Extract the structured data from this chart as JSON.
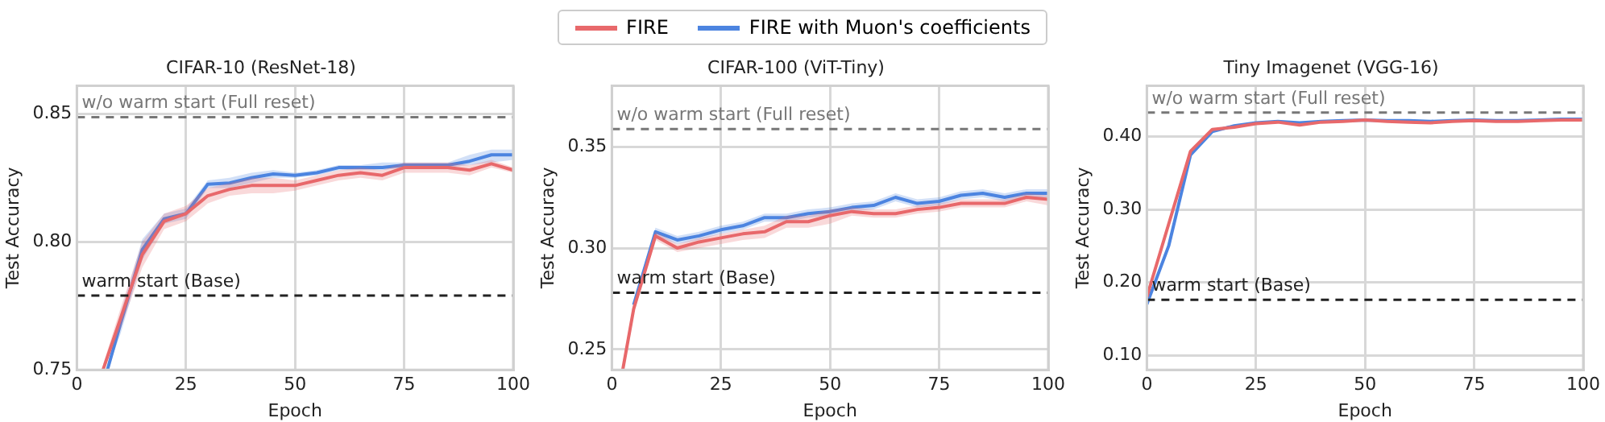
{
  "chart_data": [
    {
      "type": "line",
      "title": "CIFAR-10 (ResNet-18)",
      "xlabel": "Epoch",
      "ylabel": "Test Accuracy",
      "legend": "top",
      "grid": true,
      "xlim": [
        0,
        100
      ],
      "xticks": [
        0,
        25,
        50,
        75,
        100
      ],
      "ylim": [
        0.75,
        0.861
      ],
      "yticks": [
        {
          "value": 0.75,
          "label": "0.75"
        },
        {
          "value": 0.8,
          "label": "0.80"
        },
        {
          "value": 0.85,
          "label": "0.85"
        }
      ],
      "ref_lines": [
        {
          "axis": "y",
          "value": 0.8487,
          "label": "w/o warm start (Full reset)",
          "color": "#777777",
          "line_style": "dashed"
        },
        {
          "axis": "y",
          "value": 0.779,
          "label": "warm start (Base)",
          "color": "#222222",
          "line_style": "dashed"
        }
      ],
      "series": [
        {
          "name": "FIRE",
          "color": "#e8696b",
          "x": [
            6,
            10,
            15,
            20,
            25,
            30,
            35,
            40,
            45,
            50,
            55,
            60,
            65,
            70,
            75,
            80,
            85,
            90,
            95,
            100
          ],
          "values": [
            0.75,
            0.77,
            0.795,
            0.808,
            0.811,
            0.818,
            0.8205,
            0.822,
            0.822,
            0.822,
            0.824,
            0.826,
            0.827,
            0.826,
            0.829,
            0.829,
            0.829,
            0.828,
            0.8305,
            0.828
          ],
          "lower": [
            0.75,
            0.766,
            0.79,
            0.805,
            0.808,
            0.815,
            0.818,
            0.819,
            0.819,
            0.82,
            0.822,
            0.824,
            0.825,
            0.824,
            0.827,
            0.827,
            0.827,
            0.826,
            0.829,
            0.827
          ],
          "upper": [
            0.752,
            0.774,
            0.8,
            0.811,
            0.814,
            0.821,
            0.823,
            0.825,
            0.825,
            0.824,
            0.826,
            0.828,
            0.829,
            0.828,
            0.831,
            0.831,
            0.831,
            0.83,
            0.832,
            0.829
          ]
        },
        {
          "name": "FIRE with Muon's coefficients",
          "color": "#4c84e0",
          "x": [
            7,
            10,
            15,
            20,
            25,
            30,
            35,
            40,
            45,
            50,
            55,
            60,
            65,
            70,
            75,
            80,
            85,
            90,
            95,
            100
          ],
          "values": [
            0.75,
            0.768,
            0.797,
            0.809,
            0.811,
            0.8225,
            0.823,
            0.825,
            0.8265,
            0.826,
            0.827,
            0.829,
            0.829,
            0.829,
            0.83,
            0.83,
            0.83,
            0.8315,
            0.834,
            0.834
          ],
          "lower": [
            0.75,
            0.764,
            0.793,
            0.807,
            0.809,
            0.821,
            0.821,
            0.823,
            0.825,
            0.825,
            0.826,
            0.828,
            0.828,
            0.828,
            0.829,
            0.829,
            0.829,
            0.83,
            0.831,
            0.832
          ],
          "upper": [
            0.752,
            0.772,
            0.801,
            0.811,
            0.813,
            0.824,
            0.825,
            0.827,
            0.828,
            0.827,
            0.828,
            0.83,
            0.83,
            0.831,
            0.831,
            0.831,
            0.831,
            0.834,
            0.836,
            0.836
          ]
        }
      ]
    },
    {
      "type": "line",
      "title": "CIFAR-100 (ViT-Tiny)",
      "xlabel": "Epoch",
      "ylabel": "Test Accuracy",
      "grid": true,
      "xlim": [
        0,
        100
      ],
      "xticks": [
        0,
        25,
        50,
        75,
        100
      ],
      "ylim": [
        0.24,
        0.38
      ],
      "yticks": [
        {
          "value": 0.25,
          "label": "0.25"
        },
        {
          "value": 0.3,
          "label": "0.30"
        },
        {
          "value": 0.35,
          "label": "0.35"
        }
      ],
      "ref_lines": [
        {
          "axis": "y",
          "value": 0.3586,
          "label": "w/o warm start (Full reset)",
          "color": "#777777",
          "line_style": "dashed"
        },
        {
          "axis": "y",
          "value": 0.278,
          "label": "warm start (Base)",
          "color": "#222222",
          "line_style": "dashed"
        }
      ],
      "series": [
        {
          "color": "#e8696b",
          "x": [
            2.5,
            5,
            10,
            15,
            20,
            25,
            30,
            35,
            40,
            45,
            50,
            55,
            60,
            65,
            70,
            75,
            80,
            85,
            90,
            95,
            100
          ],
          "values": [
            0.24,
            0.27,
            0.306,
            0.3,
            0.303,
            0.305,
            0.307,
            0.308,
            0.313,
            0.313,
            0.316,
            0.318,
            0.317,
            0.317,
            0.319,
            0.32,
            0.322,
            0.322,
            0.322,
            0.325,
            0.324
          ],
          "lower": [
            0.24,
            0.268,
            0.304,
            0.298,
            0.3,
            0.302,
            0.304,
            0.305,
            0.31,
            0.31,
            0.312,
            0.316,
            0.315,
            0.315,
            0.317,
            0.318,
            0.32,
            0.32,
            0.32,
            0.323,
            0.321
          ],
          "upper": [
            0.241,
            0.272,
            0.308,
            0.302,
            0.305,
            0.307,
            0.309,
            0.311,
            0.316,
            0.316,
            0.319,
            0.32,
            0.319,
            0.319,
            0.321,
            0.322,
            0.324,
            0.324,
            0.324,
            0.327,
            0.326
          ]
        },
        {
          "color": "#4c84e0",
          "x": [
            2.5,
            5,
            10,
            15,
            20,
            25,
            30,
            35,
            40,
            45,
            50,
            55,
            60,
            65,
            70,
            75,
            80,
            85,
            90,
            95,
            100
          ],
          "values": [
            null,
            0.272,
            0.308,
            0.304,
            0.306,
            0.309,
            0.311,
            0.315,
            0.315,
            0.317,
            0.318,
            0.32,
            0.321,
            0.325,
            0.322,
            0.323,
            0.326,
            0.327,
            0.325,
            0.327,
            0.327
          ],
          "lower": [
            0.24,
            0.27,
            0.306,
            0.302,
            0.304,
            0.307,
            0.309,
            0.313,
            0.313,
            0.315,
            0.316,
            0.318,
            0.319,
            0.323,
            0.32,
            0.321,
            0.324,
            0.325,
            0.323,
            0.325,
            0.325
          ],
          "upper": [
            0.241,
            0.274,
            0.31,
            0.306,
            0.308,
            0.311,
            0.313,
            0.317,
            0.317,
            0.319,
            0.32,
            0.322,
            0.323,
            0.327,
            0.324,
            0.325,
            0.328,
            0.329,
            0.327,
            0.329,
            0.329
          ]
        }
      ]
    },
    {
      "type": "line",
      "title": "Tiny Imagenet (VGG-16)",
      "xlabel": "Epoch",
      "ylabel": "Test Accuracy",
      "grid": true,
      "xlim": [
        0,
        100
      ],
      "xticks": [
        0,
        25,
        50,
        75,
        100
      ],
      "ylim": [
        0.08,
        0.47
      ],
      "yticks": [
        {
          "value": 0.1,
          "label": "0.10"
        },
        {
          "value": 0.2,
          "label": "0.20"
        },
        {
          "value": 0.3,
          "label": "0.30"
        },
        {
          "value": 0.4,
          "label": "0.40"
        }
      ],
      "ref_lines": [
        {
          "axis": "y",
          "value": 0.433,
          "label": "w/o warm start (Full reset)",
          "color": "#777777",
          "line_style": "dashed"
        },
        {
          "axis": "y",
          "value": 0.176,
          "label": "warm start (Base)",
          "color": "#222222",
          "line_style": "dashed"
        }
      ],
      "series": [
        {
          "color": "#e8696b",
          "x": [
            0,
            5,
            10,
            15,
            20,
            25,
            30,
            35,
            40,
            45,
            50,
            55,
            60,
            65,
            70,
            75,
            80,
            85,
            90,
            95,
            100
          ],
          "values": [
            0.18,
            0.28,
            0.38,
            0.41,
            0.413,
            0.418,
            0.42,
            0.416,
            0.42,
            0.421,
            0.423,
            0.421,
            0.42,
            0.419,
            0.421,
            0.422,
            0.421,
            0.421,
            0.422,
            0.423,
            0.423
          ]
        },
        {
          "color": "#4c84e0",
          "x": [
            0,
            5,
            10,
            15,
            20,
            25,
            30,
            35,
            40,
            45,
            50,
            55,
            60,
            65,
            70,
            75,
            80,
            85,
            90,
            95,
            100
          ],
          "values": [
            0.17,
            0.25,
            0.375,
            0.407,
            0.415,
            0.419,
            0.421,
            0.419,
            0.421,
            0.422,
            0.423,
            0.422,
            0.422,
            0.421,
            0.422,
            0.423,
            0.422,
            0.422,
            0.423,
            0.424,
            0.424
          ]
        }
      ]
    }
  ]
}
